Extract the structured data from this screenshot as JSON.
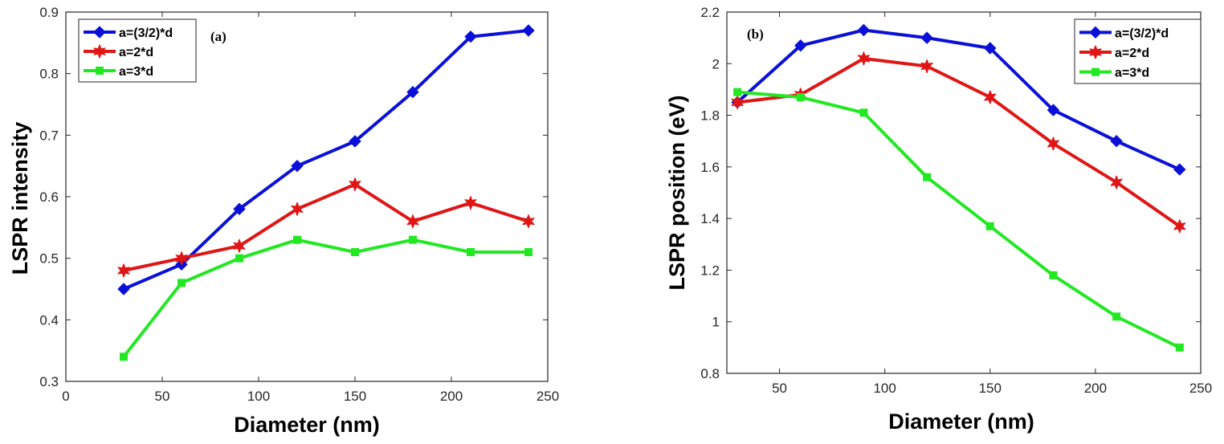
{
  "chart_data": [
    {
      "type": "line",
      "panel_label": "(a)",
      "xlabel": "Diameter (nm)",
      "ylabel": "LSPR intensity",
      "xlim": [
        0,
        250
      ],
      "ylim": [
        0.3,
        0.9
      ],
      "xticks": [
        0,
        50,
        100,
        150,
        200,
        250
      ],
      "xtick_labels": [
        "0",
        "50",
        "100",
        "150",
        "200",
        "250"
      ],
      "yticks": [
        0.3,
        0.4,
        0.5,
        0.6,
        0.7,
        0.8,
        0.9
      ],
      "ytick_labels": [
        "0.3",
        "0.4",
        "0.5",
        "0.6",
        "0.7",
        "0.8",
        "0.9"
      ],
      "legend_position": "top-left",
      "x": [
        30,
        60,
        90,
        120,
        150,
        180,
        210,
        240
      ],
      "series": [
        {
          "name": "a=(3/2)*d",
          "color": "#0a10d8",
          "marker": "diamond",
          "values": [
            0.45,
            0.49,
            0.58,
            0.65,
            0.69,
            0.77,
            0.86,
            0.87
          ]
        },
        {
          "name": "a=2*d",
          "color": "#e01616",
          "marker": "star",
          "values": [
            0.48,
            0.5,
            0.52,
            0.58,
            0.62,
            0.56,
            0.59,
            0.56
          ]
        },
        {
          "name": "a=3*d",
          "color": "#22e822",
          "marker": "square",
          "values": [
            0.34,
            0.46,
            0.5,
            0.53,
            0.51,
            0.53,
            0.51,
            0.51
          ]
        }
      ]
    },
    {
      "type": "line",
      "panel_label": "(b)",
      "xlabel": "Diameter (nm)",
      "ylabel": "LSPR position (eV)",
      "xlim": [
        25,
        250
      ],
      "ylim": [
        0.8,
        2.2
      ],
      "xticks": [
        50,
        100,
        150,
        200,
        250
      ],
      "xtick_labels": [
        "50",
        "100",
        "150",
        "200",
        "250"
      ],
      "yticks": [
        0.8,
        1.0,
        1.2,
        1.4,
        1.6,
        1.8,
        2.0,
        2.2
      ],
      "ytick_labels": [
        "0.8",
        "1",
        "1.2",
        "1.4",
        "1.6",
        "1.8",
        "2",
        "2.2"
      ],
      "legend_position": "top-right",
      "x": [
        30,
        60,
        90,
        120,
        150,
        180,
        210,
        240
      ],
      "series": [
        {
          "name": "a=(3/2)*d",
          "color": "#0a10d8",
          "marker": "diamond",
          "values": [
            1.85,
            2.07,
            2.13,
            2.1,
            2.06,
            1.82,
            1.7,
            1.59
          ]
        },
        {
          "name": "a=2*d",
          "color": "#e01616",
          "marker": "star",
          "values": [
            1.85,
            1.88,
            2.02,
            1.99,
            1.87,
            1.69,
            1.54,
            1.37
          ]
        },
        {
          "name": "a=3*d",
          "color": "#22e822",
          "marker": "square",
          "values": [
            1.89,
            1.87,
            1.81,
            1.56,
            1.37,
            1.18,
            1.02,
            0.9
          ]
        }
      ]
    }
  ]
}
